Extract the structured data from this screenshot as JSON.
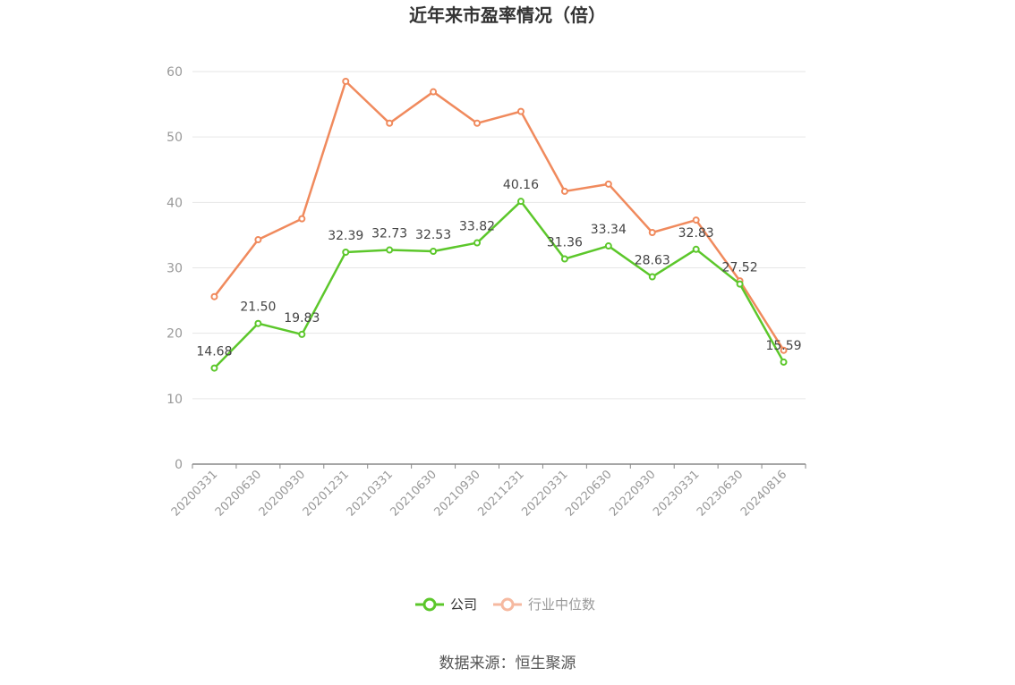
{
  "chart_data": {
    "type": "line",
    "title": "近年来市盈率情况（倍）",
    "categories": [
      "20200331",
      "20200630",
      "20200930",
      "20201231",
      "20210331",
      "20210630",
      "20210930",
      "20211231",
      "20220331",
      "20220630",
      "20220930",
      "20230331",
      "20230630",
      "20240816"
    ],
    "series": [
      {
        "name": "公司",
        "color": "#5cc72b",
        "values": [
          14.68,
          21.5,
          19.83,
          32.39,
          32.73,
          32.53,
          33.82,
          40.16,
          31.36,
          33.34,
          28.63,
          32.83,
          27.52,
          15.59
        ],
        "labels": [
          "14.68",
          "21.50",
          "19.83",
          "32.39",
          "32.73",
          "32.53",
          "33.82",
          "40.16",
          "31.36",
          "33.34",
          "28.63",
          "32.83",
          "27.52",
          "15.59"
        ]
      },
      {
        "name": "行业中位数",
        "color": "#f08a5d",
        "values": [
          25.6,
          34.3,
          37.5,
          58.5,
          52.1,
          56.9,
          52.1,
          53.9,
          41.7,
          42.8,
          35.4,
          37.3,
          28.0,
          17.4
        ]
      }
    ],
    "ylim": [
      0,
      60
    ],
    "yticks": [
      "0",
      "10",
      "20",
      "30",
      "40",
      "50",
      "60"
    ],
    "xlabel": "",
    "ylabel": "",
    "grid": true,
    "legend": "bottom-center",
    "legend_inactive_color": "#f6b9a0"
  },
  "source": "数据来源：恒生聚源"
}
